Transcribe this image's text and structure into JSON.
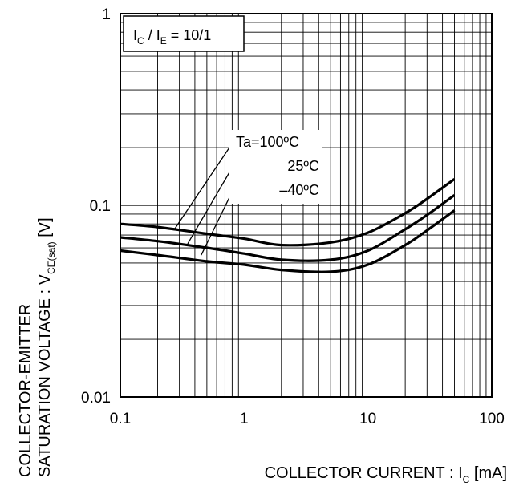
{
  "chart_data": {
    "type": "line",
    "x_scale": "log",
    "y_scale": "log",
    "xlim": [
      0.1,
      100
    ],
    "ylim": [
      0.01,
      1
    ],
    "grid": true,
    "x_ticks": [
      "0.1",
      "1",
      "10",
      "100"
    ],
    "y_ticks": [
      "0.01",
      "0.1",
      "1"
    ],
    "xlabel": {
      "main": "COLLECTOR CURRENT : I",
      "sub": "C",
      "unit": " [mA]"
    },
    "ylabel": {
      "line1": "COLLECTOR-EMITTER",
      "line2_main": "SATURATION VOLTAGE : V",
      "line2_sub": "CE(sat)",
      "line2_unit": " [V]"
    },
    "condition": {
      "i1": "I",
      "s1": "C",
      "mid": " / I",
      "s2": "E",
      "tail": " = 10/1"
    },
    "series": [
      {
        "name": "Ta=100ºC",
        "x": [
          0.1,
          0.2,
          0.5,
          1,
          2,
          5,
          10,
          20,
          30,
          50
        ],
        "y": [
          0.08,
          0.077,
          0.071,
          0.067,
          0.062,
          0.064,
          0.072,
          0.091,
          0.108,
          0.137
        ],
        "label_anchor": [
          0.27,
          0.074
        ]
      },
      {
        "name": "25ºC",
        "x": [
          0.1,
          0.2,
          0.5,
          1,
          2,
          5,
          10,
          20,
          30,
          50
        ],
        "y": [
          0.068,
          0.065,
          0.06,
          0.056,
          0.052,
          0.052,
          0.058,
          0.075,
          0.089,
          0.113
        ],
        "label_anchor": [
          0.35,
          0.063
        ]
      },
      {
        "name": "–40ºC",
        "x": [
          0.1,
          0.2,
          0.5,
          1,
          2,
          5,
          10,
          20,
          30,
          50
        ],
        "y": [
          0.058,
          0.055,
          0.051,
          0.049,
          0.046,
          0.045,
          0.049,
          0.062,
          0.074,
          0.094
        ],
        "label_anchor": [
          0.45,
          0.055
        ]
      }
    ]
  }
}
